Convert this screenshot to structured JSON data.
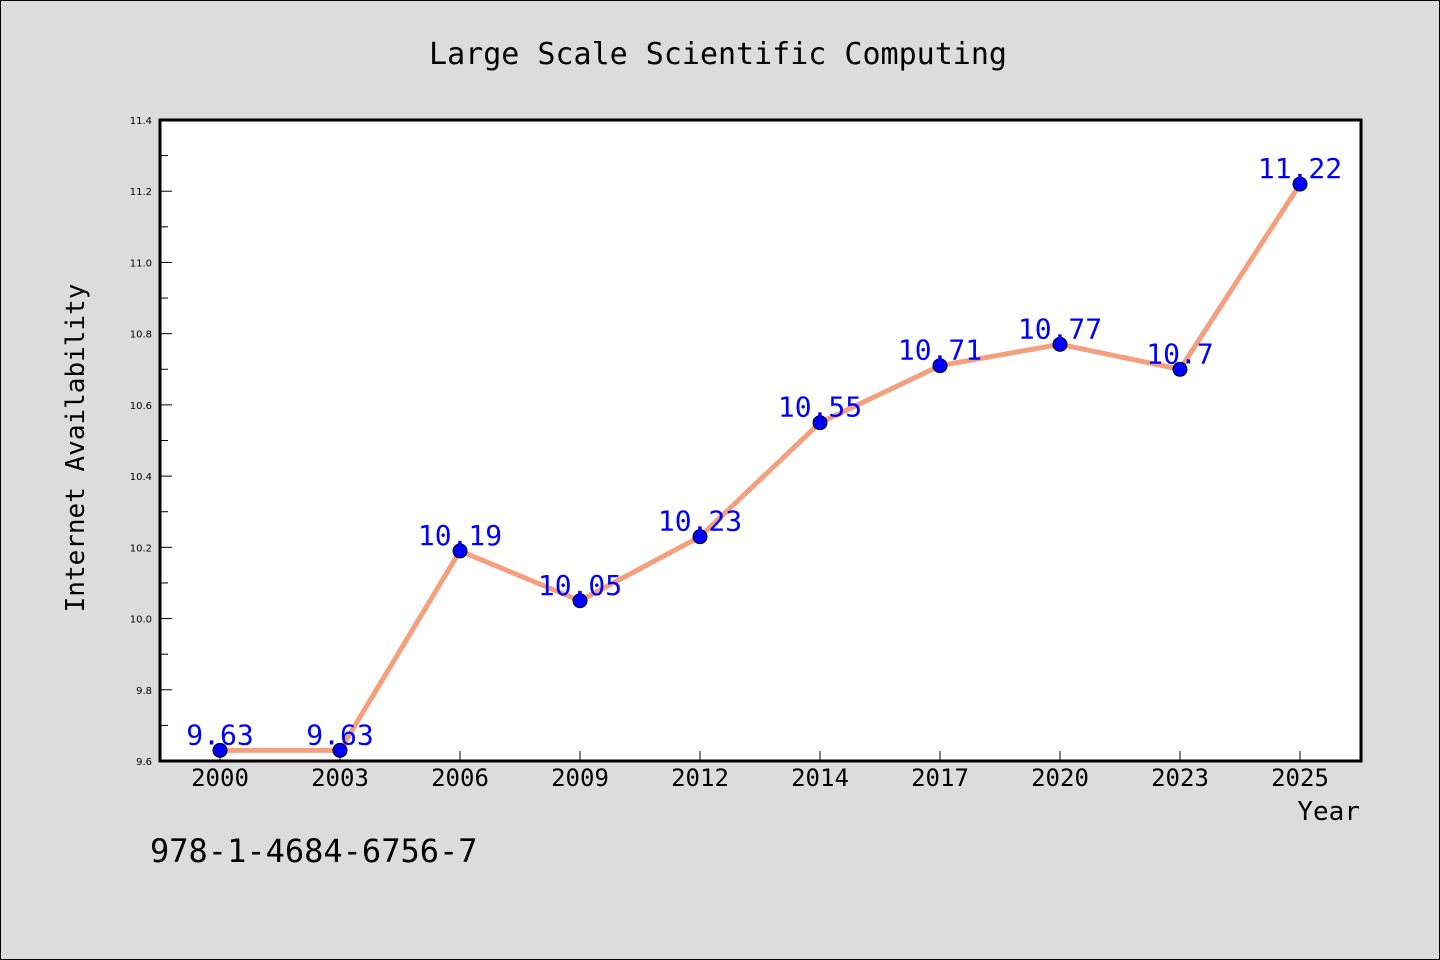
{
  "chart_data": {
    "type": "line",
    "title": "Large Scale Scientific Computing",
    "xlabel": "Year",
    "ylabel": "Internet Availability",
    "categories": [
      "2000",
      "2003",
      "2006",
      "2009",
      "2012",
      "2014",
      "2017",
      "2020",
      "2023",
      "2025"
    ],
    "series": [
      {
        "values": [
          9.63,
          9.63,
          10.19,
          10.05,
          10.23,
          10.55,
          10.71,
          10.77,
          10.7,
          11.22
        ],
        "data_labels": [
          "9.63",
          "9.63",
          "10.19",
          "10.05",
          "10.23",
          "10.55",
          "10.71",
          "10.77",
          "10.7",
          "11.22"
        ]
      }
    ],
    "ylim": [
      9.6,
      11.4
    ],
    "yticks": [
      "9.6",
      "9.8",
      "10.0",
      "10.2",
      "10.4",
      "10.6",
      "10.8",
      "11.0",
      "11.2",
      "11.4"
    ],
    "grid": false,
    "colors": {
      "line": "#f4a07e",
      "marker": "#0000ff",
      "data_label": "#0000ff",
      "background": "#dcdcdc",
      "plot_area": "#ffffff"
    }
  },
  "footer": {
    "isbn": "978-1-4684-6756-7"
  }
}
